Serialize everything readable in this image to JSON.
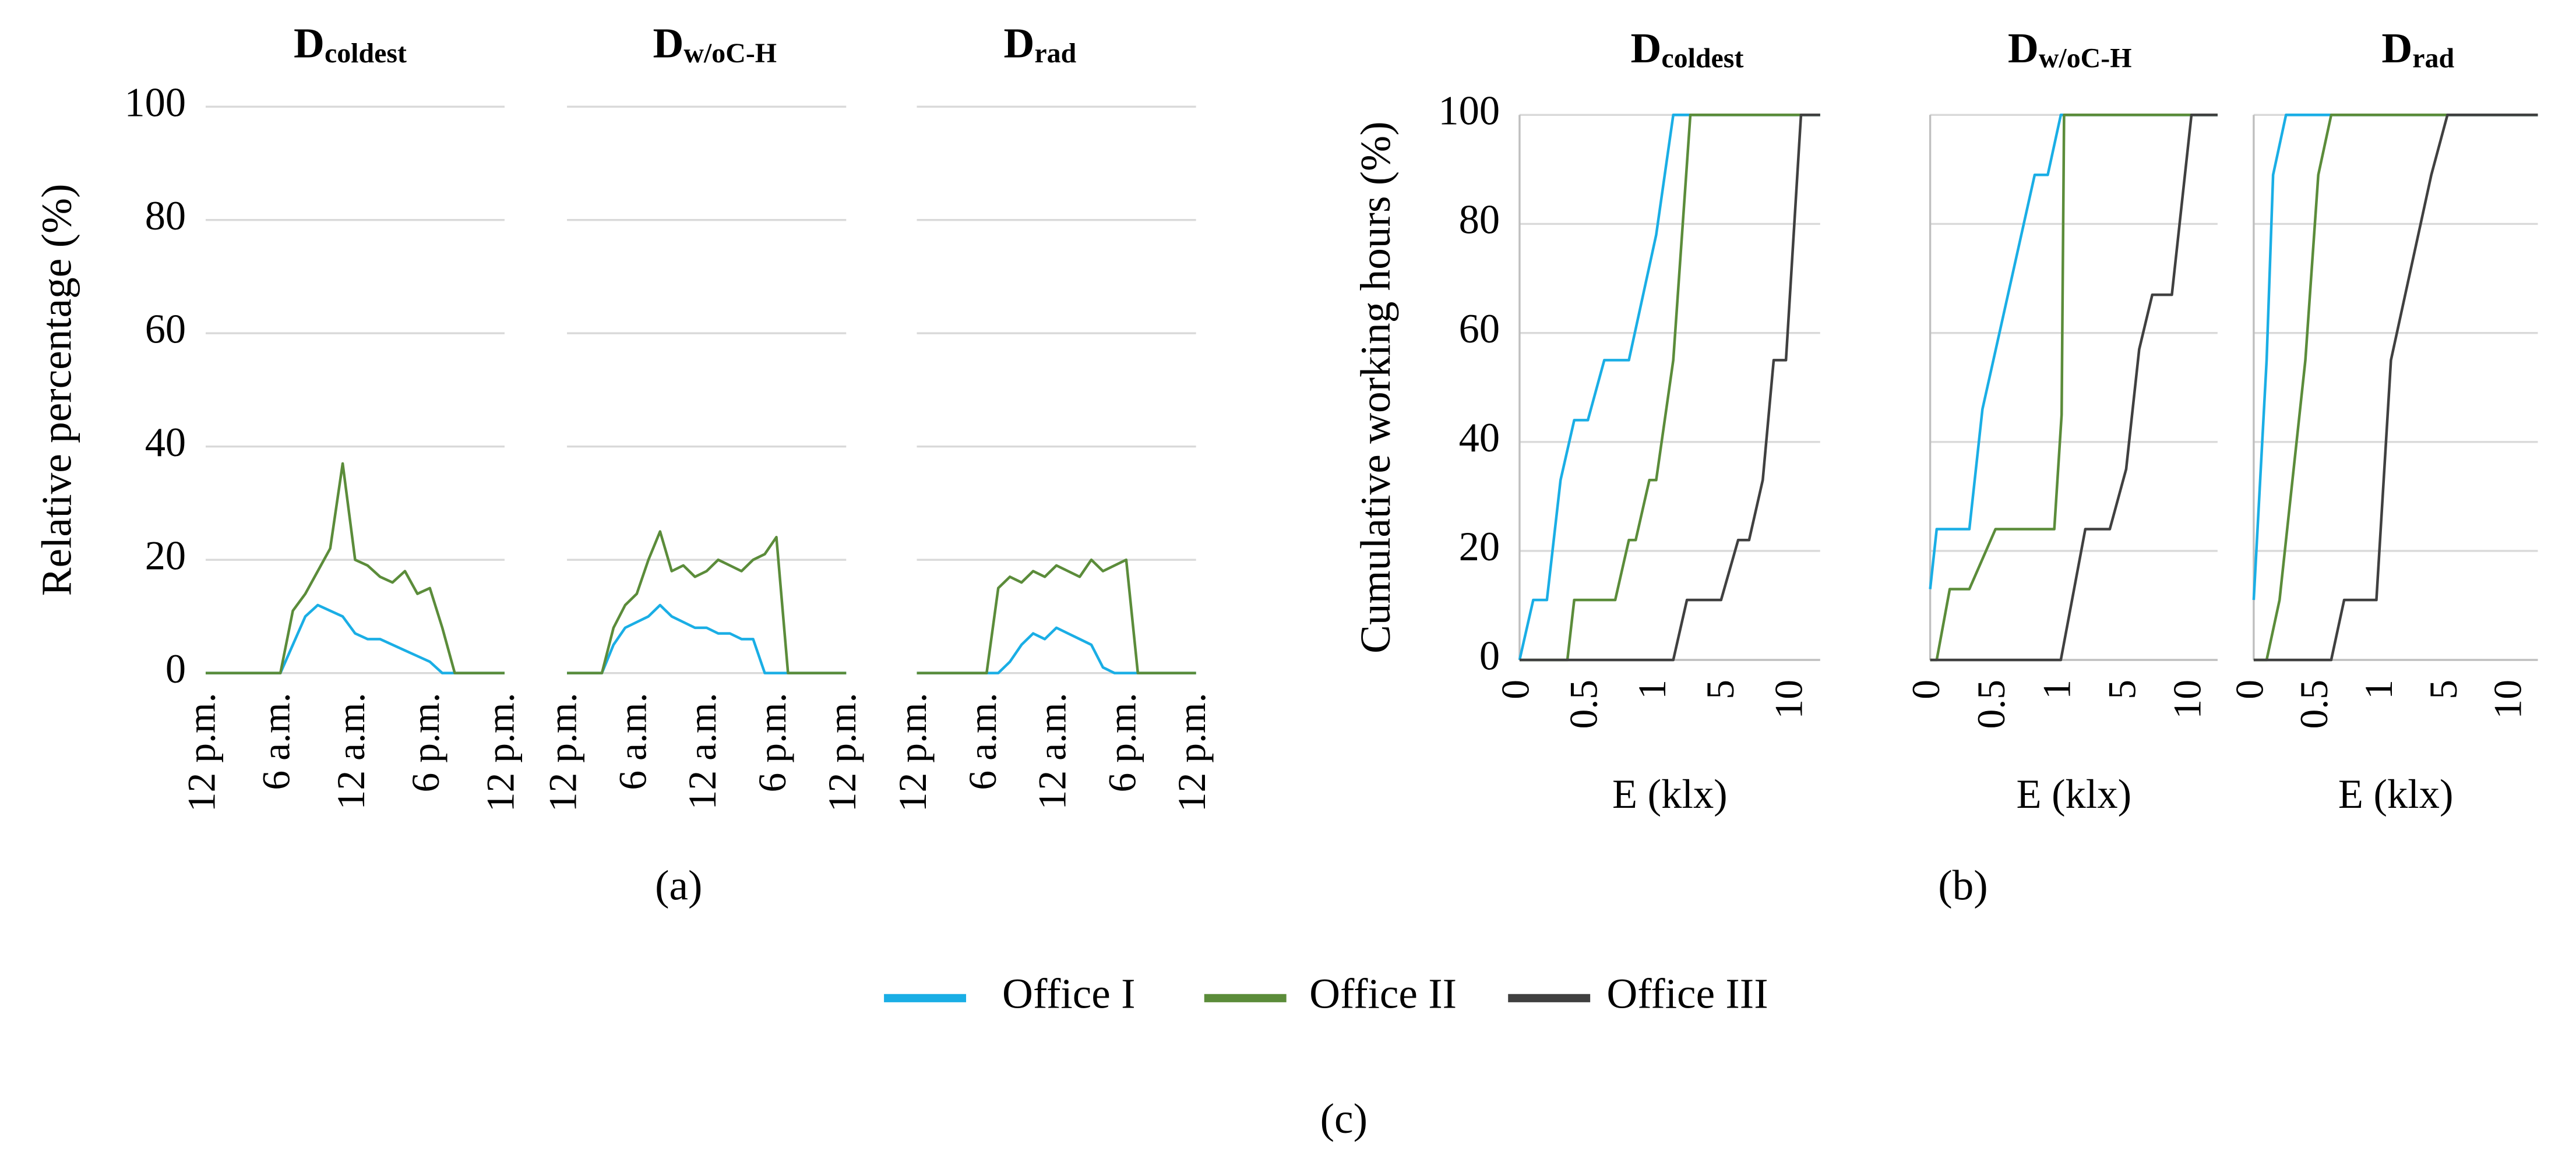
{
  "chart_data": [
    {
      "type": "line",
      "title": "D",
      "title_sub": "coldest",
      "ylabel": "Relative percentage (%)",
      "x": [
        0,
        1,
        2,
        3,
        4,
        5,
        6,
        7,
        8,
        9,
        10,
        11,
        12,
        13,
        14,
        15,
        16,
        17,
        18,
        19,
        20,
        21,
        22,
        23,
        24
      ],
      "xlim": [
        0,
        24
      ],
      "xticks": [
        {
          "value": 0,
          "label": "12 p.m."
        },
        {
          "value": 6,
          "label": "6 a.m."
        },
        {
          "value": 12,
          "label": "12 a.m."
        },
        {
          "value": 18,
          "label": "6 p.m."
        },
        {
          "value": 24,
          "label": "12 p.m."
        }
      ],
      "ylim": [
        0,
        100
      ],
      "yticks": [
        0,
        20,
        40,
        60,
        80,
        100
      ],
      "grid": true,
      "series": [
        {
          "name": "Office I",
          "color": "#1aaee5",
          "values": [
            0,
            0,
            0,
            0,
            0,
            0,
            0,
            5,
            10,
            12,
            11,
            10,
            7,
            6,
            6,
            5,
            4,
            3,
            2,
            0,
            0,
            0,
            0,
            0,
            0
          ]
        },
        {
          "name": "Office II",
          "color": "#5b8c3a",
          "values": [
            0,
            0,
            0,
            0,
            0,
            0,
            0,
            11,
            14,
            18,
            22,
            37,
            20,
            19,
            17,
            16,
            18,
            14,
            15,
            8,
            0,
            0,
            0,
            0,
            0
          ]
        }
      ]
    },
    {
      "type": "line",
      "title": "D",
      "title_sub": "w/oC-H",
      "x": [
        0,
        1,
        2,
        3,
        4,
        5,
        6,
        7,
        8,
        9,
        10,
        11,
        12,
        13,
        14,
        15,
        16,
        17,
        18,
        19,
        20,
        21,
        22,
        23,
        24
      ],
      "xlim": [
        0,
        24
      ],
      "xticks": [
        {
          "value": 0,
          "label": "12 p.m."
        },
        {
          "value": 6,
          "label": "6 a.m."
        },
        {
          "value": 12,
          "label": "12 a.m."
        },
        {
          "value": 18,
          "label": "6 p.m."
        },
        {
          "value": 24,
          "label": "12 p.m."
        }
      ],
      "ylim": [
        0,
        100
      ],
      "yticks": [
        0,
        20,
        40,
        60,
        80,
        100
      ],
      "grid": true,
      "series": [
        {
          "name": "Office I",
          "color": "#1aaee5",
          "values": [
            0,
            0,
            0,
            0,
            5,
            8,
            9,
            10,
            12,
            10,
            9,
            8,
            8,
            7,
            7,
            6,
            6,
            0,
            0,
            0,
            0,
            0,
            0,
            0,
            0
          ]
        },
        {
          "name": "Office II",
          "color": "#5b8c3a",
          "values": [
            0,
            0,
            0,
            0,
            8,
            12,
            14,
            20,
            25,
            18,
            19,
            17,
            18,
            20,
            19,
            18,
            20,
            21,
            24,
            0,
            0,
            0,
            0,
            0,
            0
          ]
        }
      ]
    },
    {
      "type": "line",
      "title": "D",
      "title_sub": "rad",
      "x": [
        0,
        1,
        2,
        3,
        4,
        5,
        6,
        7,
        8,
        9,
        10,
        11,
        12,
        13,
        14,
        15,
        16,
        17,
        18,
        19,
        20,
        21,
        22,
        23,
        24
      ],
      "xlim": [
        0,
        24
      ],
      "xticks": [
        {
          "value": 0,
          "label": "12 p.m."
        },
        {
          "value": 6,
          "label": "6 a.m."
        },
        {
          "value": 12,
          "label": "12 a.m."
        },
        {
          "value": 18,
          "label": "6 p.m."
        },
        {
          "value": 24,
          "label": "12 p.m."
        }
      ],
      "ylim": [
        0,
        100
      ],
      "yticks": [
        0,
        20,
        40,
        60,
        80,
        100
      ],
      "grid": true,
      "series": [
        {
          "name": "Office I",
          "color": "#1aaee5",
          "values": [
            0,
            0,
            0,
            0,
            0,
            0,
            0,
            0,
            2,
            5,
            7,
            6,
            8,
            7,
            6,
            5,
            1,
            0,
            0,
            0,
            0,
            0,
            0,
            0,
            0
          ]
        },
        {
          "name": "Office II",
          "color": "#5b8c3a",
          "values": [
            0,
            0,
            0,
            0,
            0,
            0,
            0,
            15,
            17,
            16,
            18,
            17,
            19,
            18,
            17,
            20,
            18,
            19,
            20,
            0,
            0,
            0,
            0,
            0,
            0
          ]
        }
      ]
    },
    {
      "type": "line",
      "title": "D",
      "title_sub": "coldest",
      "ylabel": "Cumulative working hours (%)",
      "xlabel": "E (klx)",
      "xscale": "piecewise",
      "xlim": [
        0,
        12
      ],
      "xticks": [
        0,
        0.5,
        1,
        5,
        10
      ],
      "ylim": [
        0,
        100
      ],
      "yticks": [
        0,
        20,
        40,
        60,
        80,
        100
      ],
      "grid": true,
      "series": [
        {
          "name": "Office I",
          "color": "#1aaee5",
          "x": [
            0,
            0.1,
            0.2,
            0.3,
            0.4,
            0.5,
            0.62,
            0.8,
            1,
            2,
            12
          ],
          "values": [
            0,
            11,
            11,
            33,
            44,
            44,
            55,
            55,
            78,
            100,
            100
          ]
        },
        {
          "name": "Office II",
          "color": "#5b8c3a",
          "x": [
            0,
            0.35,
            0.4,
            0.7,
            0.8,
            0.85,
            0.95,
            1,
            2,
            3,
            12
          ],
          "values": [
            0,
            0,
            11,
            11,
            22,
            22,
            33,
            33,
            55,
            100,
            100
          ]
        },
        {
          "name": "Office III",
          "color": "#404040",
          "x": [
            0,
            2,
            2.8,
            4.8,
            6,
            6.8,
            7.8,
            8.6,
            9.5,
            10.6,
            12
          ],
          "values": [
            0,
            0,
            11,
            11,
            22,
            22,
            33,
            55,
            55,
            100,
            100
          ]
        }
      ]
    },
    {
      "type": "line",
      "title": "D",
      "title_sub": "w/oC-H",
      "xlabel": "E (klx)",
      "xscale": "piecewise",
      "xlim": [
        0,
        12
      ],
      "xticks": [
        0,
        0.5,
        1,
        5,
        10
      ],
      "ylim": [
        0,
        100
      ],
      "yticks": [
        0,
        20,
        40,
        60,
        80,
        100
      ],
      "grid": true,
      "series": [
        {
          "name": "Office I",
          "color": "#1aaee5",
          "x": [
            0,
            0.05,
            0.3,
            0.4,
            0.8,
            0.9,
            1,
            12
          ],
          "values": [
            13,
            24,
            24,
            46,
            89,
            89,
            100,
            100
          ]
        },
        {
          "name": "Office II",
          "color": "#5b8c3a",
          "x": [
            0,
            0.05,
            0.15,
            0.3,
            0.5,
            0.95,
            1.05,
            1.2,
            12
          ],
          "values": [
            0,
            0,
            13,
            13,
            24,
            24,
            45,
            100,
            100
          ]
        },
        {
          "name": "Office III",
          "color": "#404040",
          "x": [
            0,
            1,
            2.5,
            4,
            5,
            6,
            7,
            8.5,
            10,
            12
          ],
          "values": [
            0,
            0,
            24,
            24,
            35,
            57,
            67,
            67,
            100,
            100
          ]
        }
      ]
    },
    {
      "type": "line",
      "title": "D",
      "title_sub": "rad",
      "xlabel": "E (klx)",
      "xscale": "piecewise",
      "xlim": [
        0,
        12
      ],
      "xticks": [
        0,
        0.5,
        1,
        5,
        10
      ],
      "ylim": [
        0,
        100
      ],
      "yticks": [
        0,
        20,
        40,
        60,
        80,
        100
      ],
      "grid": true,
      "series": [
        {
          "name": "Office I",
          "color": "#1aaee5",
          "x": [
            0,
            0.1,
            0.15,
            0.25,
            12
          ],
          "values": [
            11,
            55,
            89,
            100,
            100
          ]
        },
        {
          "name": "Office II",
          "color": "#5b8c3a",
          "x": [
            0,
            0.1,
            0.2,
            0.4,
            0.5,
            0.6,
            12
          ],
          "values": [
            0,
            0,
            11,
            55,
            89,
            100,
            100
          ]
        },
        {
          "name": "Office III",
          "color": "#404040",
          "x": [
            0,
            0.6,
            0.7,
            0.95,
            1.5,
            4,
            5,
            12
          ],
          "values": [
            0,
            0,
            11,
            11,
            55,
            89,
            100,
            100
          ]
        }
      ]
    }
  ],
  "captions": [
    "(a)",
    "(b)",
    "(c)"
  ]
}
